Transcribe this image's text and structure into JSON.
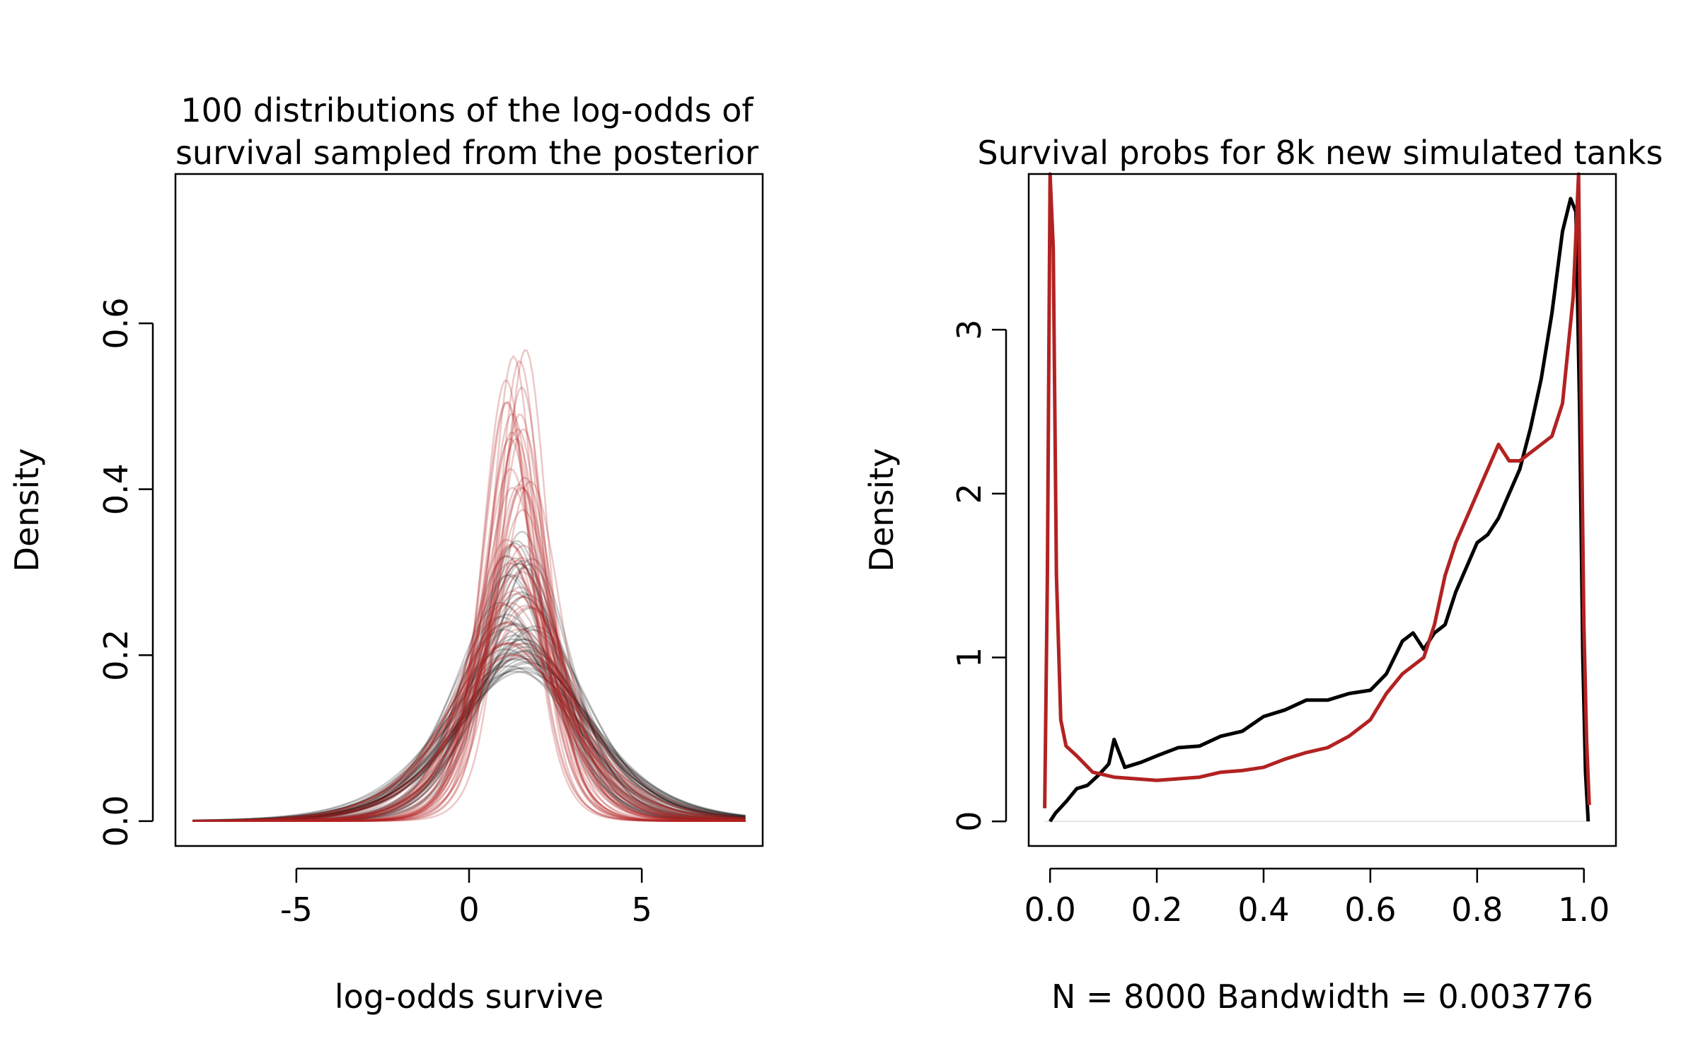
{
  "chart_data": [
    {
      "type": "line",
      "title_lines": [
        "100 distributions of the log-odds of",
        "survival sampled from the posterior"
      ],
      "xlabel": "log-odds survive",
      "ylabel": "Density",
      "xlim": [
        -8.5,
        8.5
      ],
      "ylim": [
        -0.03,
        0.78
      ],
      "x_ticks": [
        -5,
        0,
        5
      ],
      "x_tick_labels": [
        "-5",
        "0",
        "5"
      ],
      "y_ticks": [
        0.0,
        0.2,
        0.4,
        0.6
      ],
      "y_tick_labels": [
        "0.0",
        "0.2",
        "0.4",
        "0.6"
      ],
      "x_range_drawn": [
        -8,
        8
      ],
      "n_curves": 100,
      "curve_family": "logistic density",
      "series": [
        {
          "name": "",
          "color": "#000000",
          "alpha": 0.2,
          "count": 50,
          "location_range": [
            0.9,
            1.9
          ],
          "peak_density_range": [
            0.18,
            0.35
          ]
        },
        {
          "name": "",
          "color": "#b22222",
          "alpha": 0.25,
          "count": 50,
          "location_range": [
            1.0,
            1.8
          ],
          "peak_density_range": [
            0.2,
            0.57
          ]
        }
      ]
    },
    {
      "type": "line",
      "title": "Survival probs for 8k new simulated tanks",
      "xlabel": "N = 8000   Bandwidth = 0.003776",
      "ylabel": "Density",
      "xlim": [
        -0.04,
        1.06
      ],
      "ylim": [
        -0.15,
        3.95
      ],
      "x_ticks": [
        0.0,
        0.2,
        0.4,
        0.6,
        0.8,
        1.0
      ],
      "x_tick_labels": [
        "0.0",
        "0.2",
        "0.4",
        "0.6",
        "0.8",
        "1.0"
      ],
      "y_ticks": [
        0,
        1,
        2,
        3
      ],
      "y_tick_labels": [
        "0",
        "1",
        "2",
        "3"
      ],
      "series": [
        {
          "name": "",
          "color": "#000000",
          "points": [
            [
              0.0,
              0.0
            ],
            [
              0.01,
              0.05
            ],
            [
              0.03,
              0.12
            ],
            [
              0.05,
              0.2
            ],
            [
              0.07,
              0.22
            ],
            [
              0.09,
              0.28
            ],
            [
              0.11,
              0.35
            ],
            [
              0.12,
              0.5
            ],
            [
              0.14,
              0.33
            ],
            [
              0.17,
              0.36
            ],
            [
              0.2,
              0.4
            ],
            [
              0.24,
              0.45
            ],
            [
              0.28,
              0.46
            ],
            [
              0.32,
              0.52
            ],
            [
              0.36,
              0.55
            ],
            [
              0.4,
              0.64
            ],
            [
              0.44,
              0.68
            ],
            [
              0.48,
              0.74
            ],
            [
              0.52,
              0.74
            ],
            [
              0.56,
              0.78
            ],
            [
              0.6,
              0.8
            ],
            [
              0.63,
              0.9
            ],
            [
              0.66,
              1.1
            ],
            [
              0.68,
              1.15
            ],
            [
              0.7,
              1.05
            ],
            [
              0.72,
              1.15
            ],
            [
              0.74,
              1.2
            ],
            [
              0.76,
              1.4
            ],
            [
              0.78,
              1.55
            ],
            [
              0.8,
              1.7
            ],
            [
              0.82,
              1.75
            ],
            [
              0.84,
              1.85
            ],
            [
              0.86,
              2.0
            ],
            [
              0.88,
              2.15
            ],
            [
              0.9,
              2.4
            ],
            [
              0.92,
              2.7
            ],
            [
              0.94,
              3.1
            ],
            [
              0.96,
              3.6
            ],
            [
              0.975,
              3.8
            ],
            [
              0.985,
              3.72
            ],
            [
              0.992,
              2.5
            ],
            [
              0.998,
              1.0
            ],
            [
              1.003,
              0.3
            ],
            [
              1.008,
              0.0
            ]
          ]
        },
        {
          "name": "",
          "color": "#b22222",
          "points": [
            [
              -0.01,
              0.08
            ],
            [
              -0.005,
              1.5
            ],
            [
              0.0,
              3.95
            ],
            [
              0.006,
              3.5
            ],
            [
              0.012,
              1.5
            ],
            [
              0.02,
              0.62
            ],
            [
              0.03,
              0.46
            ],
            [
              0.05,
              0.4
            ],
            [
              0.08,
              0.3
            ],
            [
              0.12,
              0.27
            ],
            [
              0.16,
              0.26
            ],
            [
              0.2,
              0.25
            ],
            [
              0.24,
              0.26
            ],
            [
              0.28,
              0.27
            ],
            [
              0.32,
              0.3
            ],
            [
              0.36,
              0.31
            ],
            [
              0.4,
              0.33
            ],
            [
              0.44,
              0.38
            ],
            [
              0.48,
              0.42
            ],
            [
              0.52,
              0.45
            ],
            [
              0.56,
              0.52
            ],
            [
              0.6,
              0.62
            ],
            [
              0.63,
              0.78
            ],
            [
              0.66,
              0.9
            ],
            [
              0.7,
              1.0
            ],
            [
              0.72,
              1.2
            ],
            [
              0.74,
              1.5
            ],
            [
              0.76,
              1.7
            ],
            [
              0.78,
              1.85
            ],
            [
              0.8,
              2.0
            ],
            [
              0.82,
              2.15
            ],
            [
              0.84,
              2.3
            ],
            [
              0.86,
              2.2
            ],
            [
              0.88,
              2.2
            ],
            [
              0.9,
              2.25
            ],
            [
              0.92,
              2.3
            ],
            [
              0.94,
              2.35
            ],
            [
              0.96,
              2.55
            ],
            [
              0.98,
              3.2
            ],
            [
              0.99,
              3.95
            ],
            [
              0.995,
              2.5
            ],
            [
              1.0,
              1.2
            ],
            [
              1.005,
              0.5
            ],
            [
              1.01,
              0.1
            ]
          ]
        }
      ]
    }
  ]
}
